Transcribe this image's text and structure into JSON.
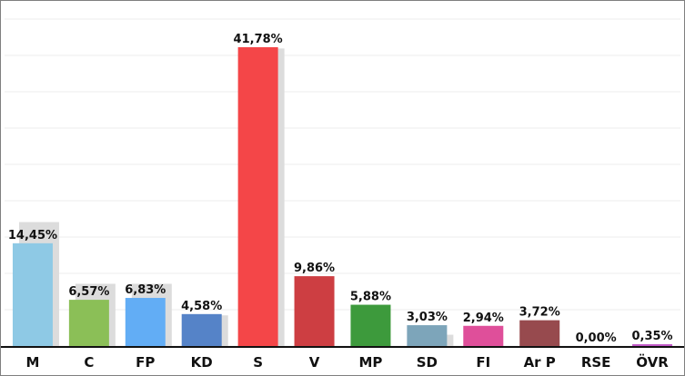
{
  "chart_data": {
    "type": "bar",
    "categories": [
      "M",
      "C",
      "FP",
      "KD",
      "S",
      "V",
      "MP",
      "SD",
      "FI",
      "Ar P",
      "RSE",
      "ÖVR"
    ],
    "series": [
      {
        "values": [
          14.45,
          6.57,
          6.83,
          4.58,
          41.78,
          9.86,
          5.88,
          3.03,
          2.94,
          3.72,
          0.0,
          0.35
        ],
        "labels": [
          "14,45%",
          "6,57%",
          "6,83%",
          "4,58%",
          "41,78%",
          "9,86%",
          "5,88%",
          "3,03%",
          "2,94%",
          "3,72%",
          "0,00%",
          "0,35%"
        ],
        "colors": [
          "#8ec9e5",
          "#8bbf57",
          "#62adf5",
          "#5583c8",
          "#f44648",
          "#cd3e42",
          "#3d9a3c",
          "#7da5ba",
          "#df4f9a",
          "#974a4e",
          "#2f7fc9",
          "#c25ac8"
        ]
      },
      {
        "values": [
          17.4,
          8.8,
          8.8,
          4.4,
          41.6,
          0.0,
          0.0,
          1.7,
          0.0,
          0.0,
          0.0,
          0.0
        ],
        "color": "#dcdcdc"
      }
    ],
    "ylim": [
      0,
      45
    ],
    "grid": true,
    "xlabel": "",
    "ylabel": ""
  }
}
